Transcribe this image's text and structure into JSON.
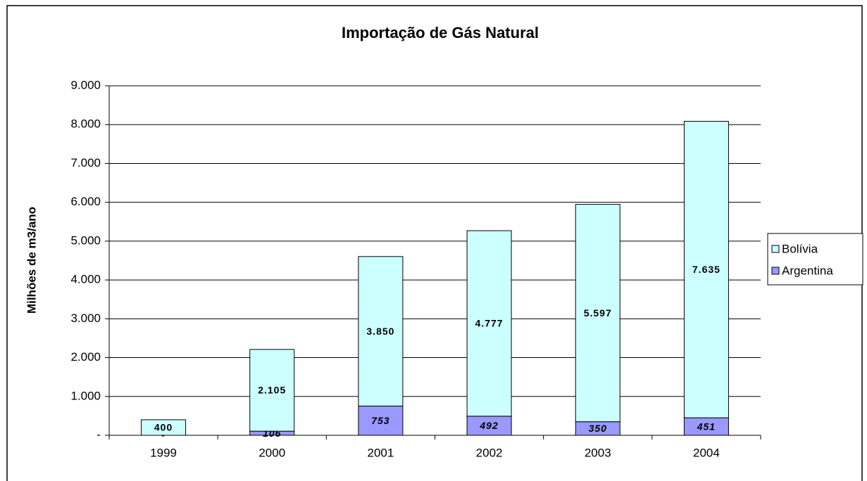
{
  "chart_data": {
    "type": "stacked_bar",
    "title": "Importação de Gás Natural",
    "y_label": "Milhões de m3/ano",
    "categories": [
      "1999",
      "2000",
      "2001",
      "2002",
      "2003",
      "2004"
    ],
    "series": [
      {
        "name": "Argentina",
        "color": "#9999ff",
        "values": [
          0,
          106,
          753,
          492,
          350,
          451
        ],
        "value_labels": [
          "-",
          "106",
          "753",
          "492",
          "350",
          "451"
        ]
      },
      {
        "name": "Bolívia",
        "color": "#ccffff",
        "values": [
          400,
          2105,
          3850,
          4777,
          5597,
          7635
        ],
        "value_labels": [
          "400",
          "2.105",
          "3.850",
          "4.777",
          "5.597",
          "7.635"
        ]
      }
    ],
    "ylim": [
      0,
      9000
    ],
    "yticks": [
      {
        "value": 0,
        "label": "-"
      },
      {
        "value": 1000,
        "label": "1.000"
      },
      {
        "value": 2000,
        "label": "2.000"
      },
      {
        "value": 3000,
        "label": "3.000"
      },
      {
        "value": 4000,
        "label": "4.000"
      },
      {
        "value": 5000,
        "label": "5.000"
      },
      {
        "value": 6000,
        "label": "6.000"
      },
      {
        "value": 7000,
        "label": "7.000"
      },
      {
        "value": 8000,
        "label": "8.000"
      },
      {
        "value": 9000,
        "label": "9.000"
      }
    ],
    "grid": true,
    "legend": "right"
  }
}
